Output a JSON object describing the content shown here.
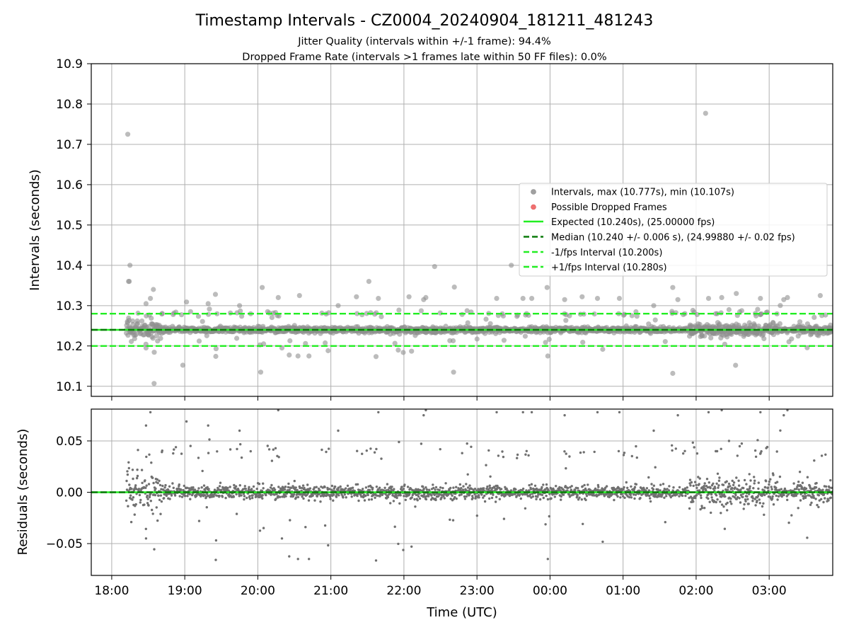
{
  "chart_data": [
    {
      "type": "scatter",
      "title": "Timestamp Intervals - CZ0004_20240904_181211_481243",
      "subtitle_lines": [
        "Jitter Quality (intervals within +/-1 frame): 94.4%",
        "Dropped Frame Rate (intervals >1 frames late within 50 FF files): 0.0%"
      ],
      "ylabel": "Intervals (seconds)",
      "xlim_hours": [
        17.72,
        27.87
      ],
      "ylim": [
        10.075,
        10.9
      ],
      "yticks": [
        "10.1",
        "10.2",
        "10.3",
        "10.4",
        "10.5",
        "10.6",
        "10.7",
        "10.8",
        "10.9"
      ],
      "grid": true,
      "legend_position": "center-right",
      "legend": [
        {
          "label": "Intervals, max (10.777s), min (10.107s)",
          "kind": "marker",
          "color": "#a0a0a0"
        },
        {
          "label": "Possible Dropped Frames",
          "kind": "marker",
          "color": "#f07070"
        },
        {
          "label": "Expected (10.240s), (25.00000 fps)",
          "kind": "solid",
          "color": "#22ee22"
        },
        {
          "label": "Median (10.240 +/- 0.006 s), (24.99880 +/- 0.02 fps)",
          "kind": "dashed",
          "color": "#0a7a0a"
        },
        {
          "label": "-1/fps Interval (10.200s)",
          "kind": "dashed",
          "color": "#22ee22"
        },
        {
          "label": "+1/fps Interval (10.280s)",
          "kind": "dashed",
          "color": "#22ee22"
        }
      ],
      "reference_lines": [
        {
          "y": 10.24,
          "style": "solid",
          "color": "#22ee22"
        },
        {
          "y": 10.24,
          "style": "dashed",
          "color": "#0a7a0a"
        },
        {
          "y": 10.2,
          "style": "dashed",
          "color": "#22ee22"
        },
        {
          "y": 10.28,
          "style": "dashed",
          "color": "#22ee22"
        }
      ],
      "x_start_hour": 18.2,
      "x_end_hour": 27.87,
      "interval_seconds": 10.24,
      "expected_interval": 10.24,
      "plus_one_frame": 10.28,
      "minus_one_frame": 10.2,
      "outliers": [
        {
          "x": 18.22,
          "y": 10.725
        },
        {
          "x": 18.25,
          "y": 10.4
        },
        {
          "x": 18.23,
          "y": 10.36
        },
        {
          "x": 18.24,
          "y": 10.36
        },
        {
          "x": 18.53,
          "y": 10.318
        },
        {
          "x": 18.57,
          "y": 10.34
        },
        {
          "x": 18.47,
          "y": 10.305
        },
        {
          "x": 18.58,
          "y": 10.107
        },
        {
          "x": 18.47,
          "y": 10.195
        },
        {
          "x": 19.32,
          "y": 10.305
        },
        {
          "x": 19.42,
          "y": 10.328
        },
        {
          "x": 19.75,
          "y": 10.3
        },
        {
          "x": 20.04,
          "y": 10.135
        },
        {
          "x": 20.06,
          "y": 10.345
        },
        {
          "x": 20.28,
          "y": 10.32
        },
        {
          "x": 20.33,
          "y": 10.195
        },
        {
          "x": 20.55,
          "y": 10.175
        },
        {
          "x": 20.57,
          "y": 10.325
        },
        {
          "x": 20.7,
          "y": 10.175
        },
        {
          "x": 21.1,
          "y": 10.3
        },
        {
          "x": 21.35,
          "y": 10.322
        },
        {
          "x": 21.52,
          "y": 10.36
        },
        {
          "x": 21.65,
          "y": 10.318
        },
        {
          "x": 22.07,
          "y": 10.322
        },
        {
          "x": 22.27,
          "y": 10.315
        },
        {
          "x": 22.3,
          "y": 10.32
        },
        {
          "x": 22.42,
          "y": 10.397
        },
        {
          "x": 22.69,
          "y": 10.346
        },
        {
          "x": 22.68,
          "y": 10.135
        },
        {
          "x": 23.27,
          "y": 10.318
        },
        {
          "x": 23.47,
          "y": 10.4
        },
        {
          "x": 23.63,
          "y": 10.318
        },
        {
          "x": 23.75,
          "y": 10.318
        },
        {
          "x": 23.96,
          "y": 10.345
        },
        {
          "x": 23.97,
          "y": 10.175
        },
        {
          "x": 24.2,
          "y": 10.315
        },
        {
          "x": 24.44,
          "y": 10.322
        },
        {
          "x": 24.65,
          "y": 10.318
        },
        {
          "x": 24.95,
          "y": 10.318
        },
        {
          "x": 25.42,
          "y": 10.3
        },
        {
          "x": 25.68,
          "y": 10.345
        },
        {
          "x": 25.68,
          "y": 10.132
        },
        {
          "x": 25.75,
          "y": 10.315
        },
        {
          "x": 26.13,
          "y": 10.777
        },
        {
          "x": 26.17,
          "y": 10.318
        },
        {
          "x": 26.35,
          "y": 10.32
        },
        {
          "x": 26.55,
          "y": 10.33
        },
        {
          "x": 26.54,
          "y": 10.152
        },
        {
          "x": 26.45,
          "y": 10.29
        },
        {
          "x": 26.88,
          "y": 10.318
        },
        {
          "x": 27.2,
          "y": 10.315
        },
        {
          "x": 27.25,
          "y": 10.32
        },
        {
          "x": 27.7,
          "y": 10.325
        }
      ]
    },
    {
      "type": "scatter",
      "xlabel": "Time (UTC)",
      "ylabel": "Residuals (seconds)",
      "xlim_hours": [
        17.72,
        27.87
      ],
      "ylim": [
        -0.081,
        0.081
      ],
      "yticks": [
        "−0.05",
        "0.00",
        "0.05"
      ],
      "grid": true,
      "xticks": [
        "18:00",
        "19:00",
        "20:00",
        "21:00",
        "22:00",
        "23:00",
        "00:00",
        "01:00",
        "02:00",
        "03:00"
      ],
      "reference_lines": [
        {
          "y": 0,
          "style": "solid",
          "color": "#22ee22"
        },
        {
          "y": 0,
          "style": "dashed",
          "color": "#0a7a0a"
        }
      ]
    }
  ]
}
